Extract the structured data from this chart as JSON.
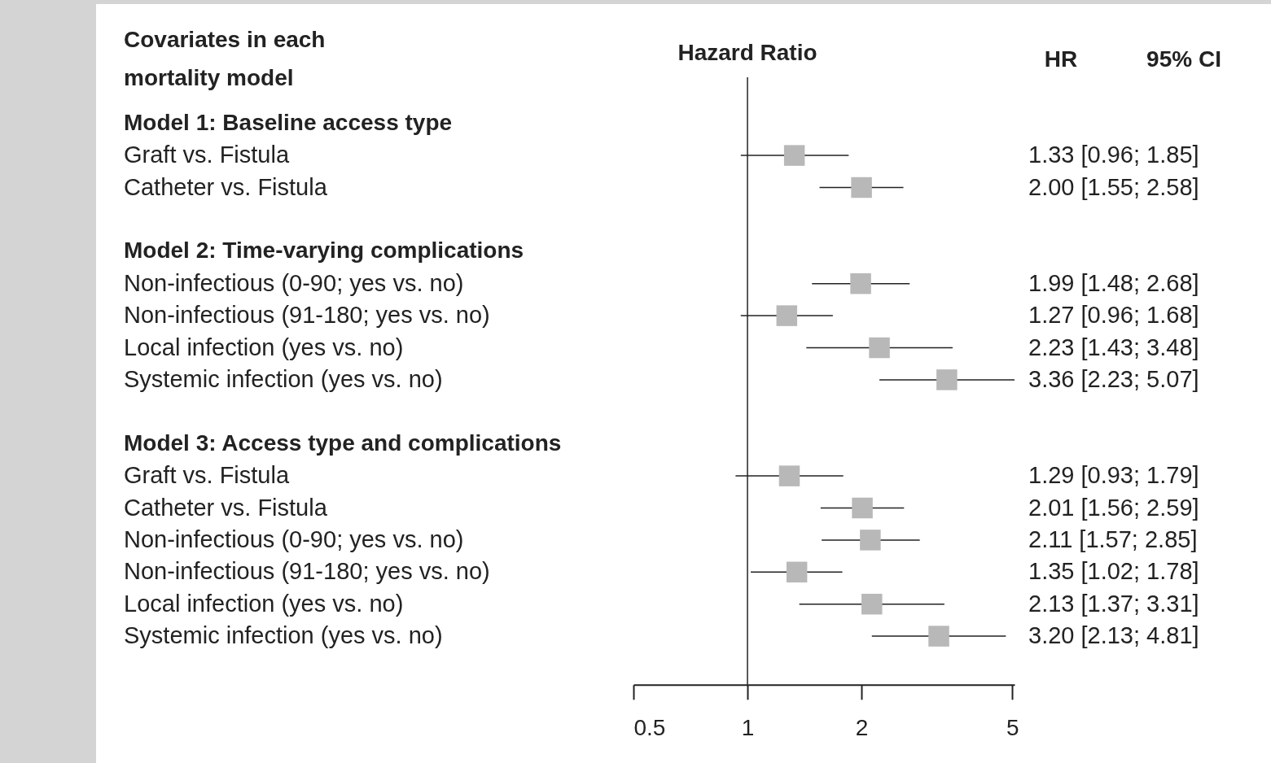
{
  "chart_data": {
    "type": "scatter",
    "orientation": "horizontal",
    "title": "Hazard Ratio",
    "ylabel": "Covariates in each mortality model",
    "annotations": [
      "HR",
      "95% CI"
    ],
    "categories": [
      "Model 1: Baseline access type",
      "Graft vs. Fistula",
      "Catheter vs. Fistula",
      null,
      "Model 2: Time-varying complications",
      "Non-infectious (0-90; yes vs. no)",
      "Non-infectious (91-180; yes vs. no)",
      "Local infection (yes vs. no)",
      "Systemic infection (yes vs. no)",
      null,
      "Model 3: Access type and complications",
      "Graft vs. Fistula",
      "Catheter vs. Fistula",
      "Non-infectious (0-90; yes vs. no)",
      "Non-infectious (91-180; yes vs. no)",
      "Local infection  (yes vs. no)",
      "Systemic infection (yes vs. no)"
    ],
    "values": [
      null,
      1.33,
      2.0,
      null,
      null,
      1.99,
      1.27,
      2.23,
      3.36,
      null,
      null,
      1.29,
      2.01,
      2.11,
      1.35,
      2.13,
      3.2
    ],
    "errors": [
      null,
      [
        0.96,
        1.85
      ],
      [
        1.55,
        2.58
      ],
      null,
      null,
      [
        1.48,
        2.68
      ],
      [
        0.96,
        1.68
      ],
      [
        1.43,
        3.48
      ],
      [
        2.23,
        5.07
      ],
      null,
      null,
      [
        0.93,
        1.79
      ],
      [
        1.56,
        2.59
      ],
      [
        1.57,
        2.85
      ],
      [
        1.02,
        1.78
      ],
      [
        1.37,
        3.31
      ],
      [
        2.13,
        4.81
      ]
    ],
    "value_labels": [
      null,
      "1.33 [0.96; 1.85]",
      "2.00 [1.55; 2.58]",
      null,
      null,
      "1.99 [1.48; 2.68]",
      "1.27 [0.96; 1.68]",
      "2.23 [1.43; 3.48]",
      "3.36 [2.23; 5.07]",
      null,
      null,
      "1.29 [0.93; 1.79]",
      "2.01 [1.56; 2.59]",
      "2.11 [1.57; 2.85]",
      "1.35 [1.02; 1.78]",
      "2.13 [1.37; 3.31]",
      "3.20 [2.13; 4.81]"
    ],
    "color": "#b8b8b8",
    "marker": "square",
    "log": "x",
    "xlim": [
      0.5,
      5.07
    ],
    "xticks": [
      0.5,
      1,
      2,
      5
    ],
    "ref_lines": [
      {
        "axis": "x",
        "value": 1
      }
    ]
  }
}
